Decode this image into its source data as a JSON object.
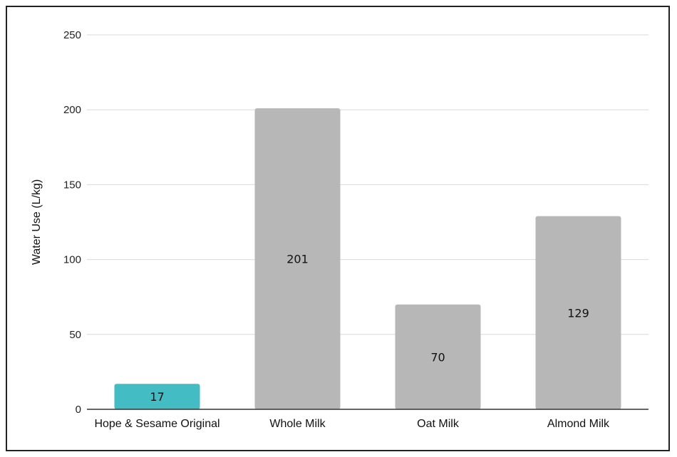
{
  "chart_data": {
    "type": "bar",
    "categories": [
      "Hope & Sesame Original",
      "Whole Milk",
      "Oat Milk",
      "Almond Milk"
    ],
    "values": [
      17,
      201,
      70,
      129
    ],
    "data_labels": [
      "17",
      "201",
      "70",
      "129"
    ],
    "title": "",
    "xlabel": "",
    "ylabel": "Water Use (L/kg)",
    "ylim": [
      0,
      250
    ],
    "yticks": [
      0,
      50,
      100,
      150,
      200,
      250
    ],
    "ytick_labels": [
      "0",
      "50",
      "100",
      "150",
      "200",
      "250"
    ],
    "grid": true,
    "legend": "none",
    "colors": {
      "highlight": "#43bcc3",
      "default": "#b7b7b7",
      "grid": "#d9d9d9",
      "axis": "#333333"
    },
    "highlight_index": 0
  }
}
